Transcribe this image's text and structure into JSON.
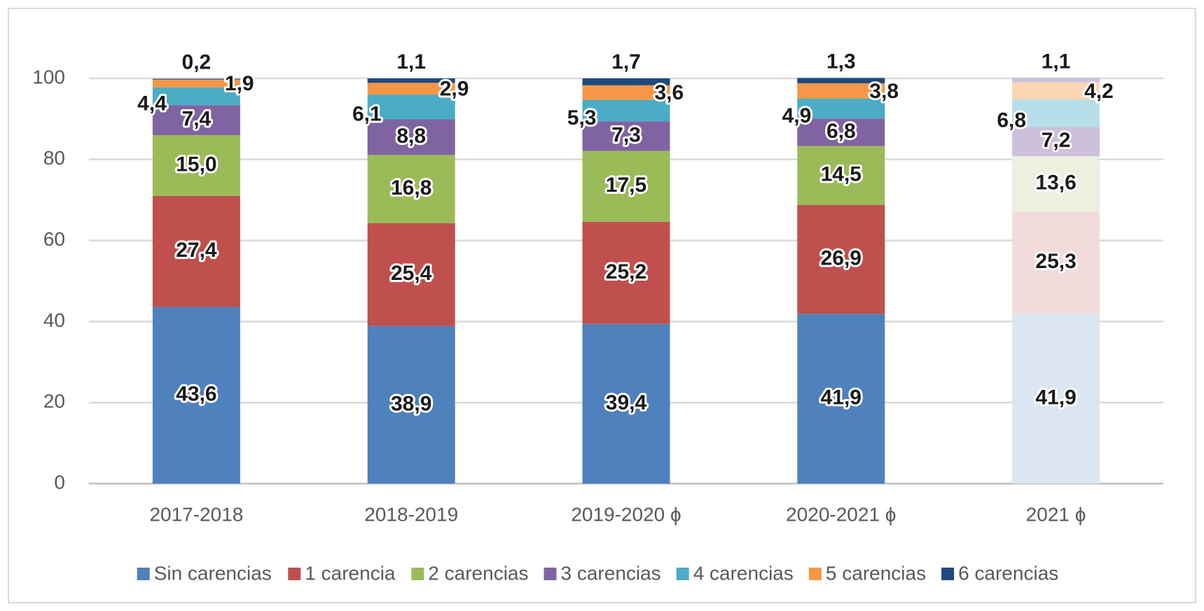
{
  "chart_data": {
    "type": "stacked_bar",
    "categories": [
      "2017-2018",
      "2018-2019",
      "2019-2020 ϕ",
      "2020-2021 ϕ",
      "2021 ϕ"
    ],
    "ylim": [
      0,
      100
    ],
    "yticks": [
      0,
      20,
      40,
      60,
      80,
      100
    ],
    "grid": true,
    "legend": "bottom",
    "series": [
      {
        "name": "Sin carencias",
        "color": "#4f81bd",
        "colors": [
          "#4f81bd",
          "#4f81bd",
          "#4f81bd",
          "#4f81bd",
          "#dce6f2"
        ],
        "values": [
          43.6,
          38.9,
          39.4,
          41.9,
          41.9
        ],
        "value_labels": [
          "43,6",
          "38,9",
          "39,4",
          "41,9",
          "41,9"
        ]
      },
      {
        "name": "1 carencia",
        "color": "#c0504d",
        "colors": [
          "#c0504d",
          "#c0504d",
          "#c0504d",
          "#c0504d",
          "#f2dcdb"
        ],
        "values": [
          27.4,
          25.4,
          25.2,
          26.9,
          25.3
        ],
        "value_labels": [
          "27,4",
          "25,4",
          "25,2",
          "26,9",
          "25,3"
        ]
      },
      {
        "name": "2 carencias",
        "color": "#9bbb59",
        "colors": [
          "#9bbb59",
          "#9bbb59",
          "#9bbb59",
          "#9bbb59",
          "#ebf1de"
        ],
        "values": [
          15.0,
          16.8,
          17.5,
          14.5,
          13.6
        ],
        "value_labels": [
          "15,0",
          "16,8",
          "17,5",
          "14,5",
          "13,6"
        ]
      },
      {
        "name": "3 carencias",
        "color": "#8064a2",
        "colors": [
          "#8064a2",
          "#8064a2",
          "#8064a2",
          "#8064a2",
          "#ccc0da"
        ],
        "values": [
          7.4,
          8.8,
          7.3,
          6.8,
          7.2
        ],
        "value_labels": [
          "7,4",
          "8,8",
          "7,3",
          "6,8",
          "7,2"
        ]
      },
      {
        "name": "4 carencias",
        "color": "#4bacc6",
        "colors": [
          "#4bacc6",
          "#4bacc6",
          "#4bacc6",
          "#4bacc6",
          "#b7dee8"
        ],
        "values": [
          4.4,
          6.1,
          5.3,
          4.9,
          6.8
        ],
        "value_labels": [
          "4,4",
          "6,1",
          "5,3",
          "4,9",
          "6,8"
        ]
      },
      {
        "name": "5 carencias",
        "color": "#f79646",
        "colors": [
          "#f79646",
          "#f79646",
          "#f79646",
          "#f79646",
          "#fcd5b4"
        ],
        "values": [
          1.9,
          2.9,
          3.6,
          3.8,
          4.2
        ],
        "value_labels": [
          "1,9",
          "2,9",
          "3,6",
          "3,8",
          "4,2"
        ]
      },
      {
        "name": "6 carencias",
        "color": "#1f497d",
        "colors": [
          "#1f497d",
          "#1f497d",
          "#1f497d",
          "#1f497d",
          "#ccc0da"
        ],
        "values": [
          0.2,
          1.1,
          1.7,
          1.3,
          1.1
        ],
        "value_labels": [
          "0,2",
          "1,1",
          "1,7",
          "1,3",
          "1,1"
        ]
      }
    ]
  }
}
